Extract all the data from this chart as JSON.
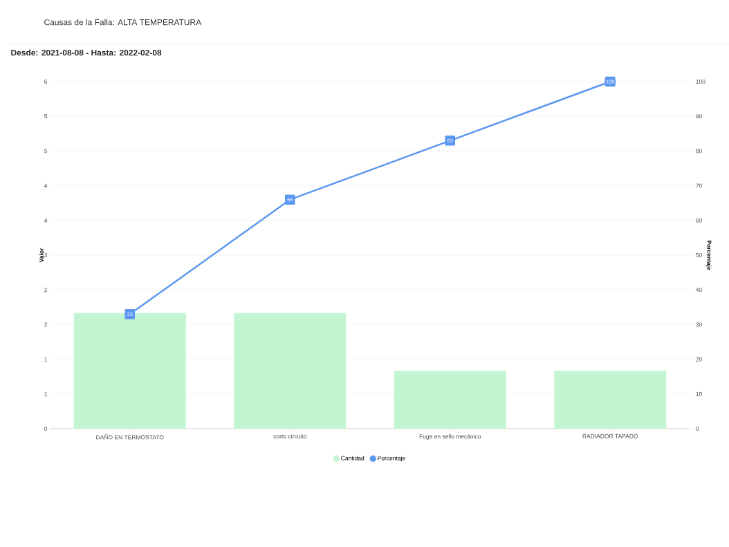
{
  "chart_data": {
    "type": "bar",
    "title": "Causas de la Falla: ALTA TEMPERATURA",
    "subtitle": "Desde: 2021-08-08 - Hasta: 2022-02-08",
    "ylabel": "Valor",
    "y2label": "Porcentaje",
    "categories": [
      "DAÑO EN TERMOSTATO",
      "corto circuito",
      "Fuga en sello mecánico",
      "RADIADOR TAPADO"
    ],
    "series": [
      {
        "name": "Cantidad",
        "color": "#c3f5d3",
        "values": [
          2,
          2,
          1,
          1
        ]
      },
      {
        "name": "Porcentaje",
        "type": "line",
        "axis": "y2",
        "color": "#5b97f0",
        "values": [
          33,
          66,
          83,
          100
        ],
        "value_labels": [
          "33",
          "66",
          "83",
          "100"
        ]
      }
    ],
    "ylim": [
      0,
      6
    ],
    "yticks": [
      0,
      {
        "value": 0.6,
        "label": "1"
      },
      {
        "value": 1.2,
        "label": "1"
      },
      {
        "value": 1.8,
        "label": "2"
      },
      {
        "value": 2.4,
        "label": "2"
      },
      3,
      {
        "value": 3.6,
        "label": "4"
      },
      {
        "value": 4.2,
        "label": "4"
      },
      {
        "value": 4.8,
        "label": "5"
      },
      {
        "value": 5.4,
        "label": "5"
      },
      6
    ],
    "y2lim": [
      0,
      100
    ],
    "y2ticks": [
      0,
      10,
      20,
      30,
      40,
      50,
      60,
      70,
      80,
      90,
      100
    ],
    "grid": "y",
    "legend": "bottom",
    "marker": "square",
    "line_style": "solid"
  }
}
